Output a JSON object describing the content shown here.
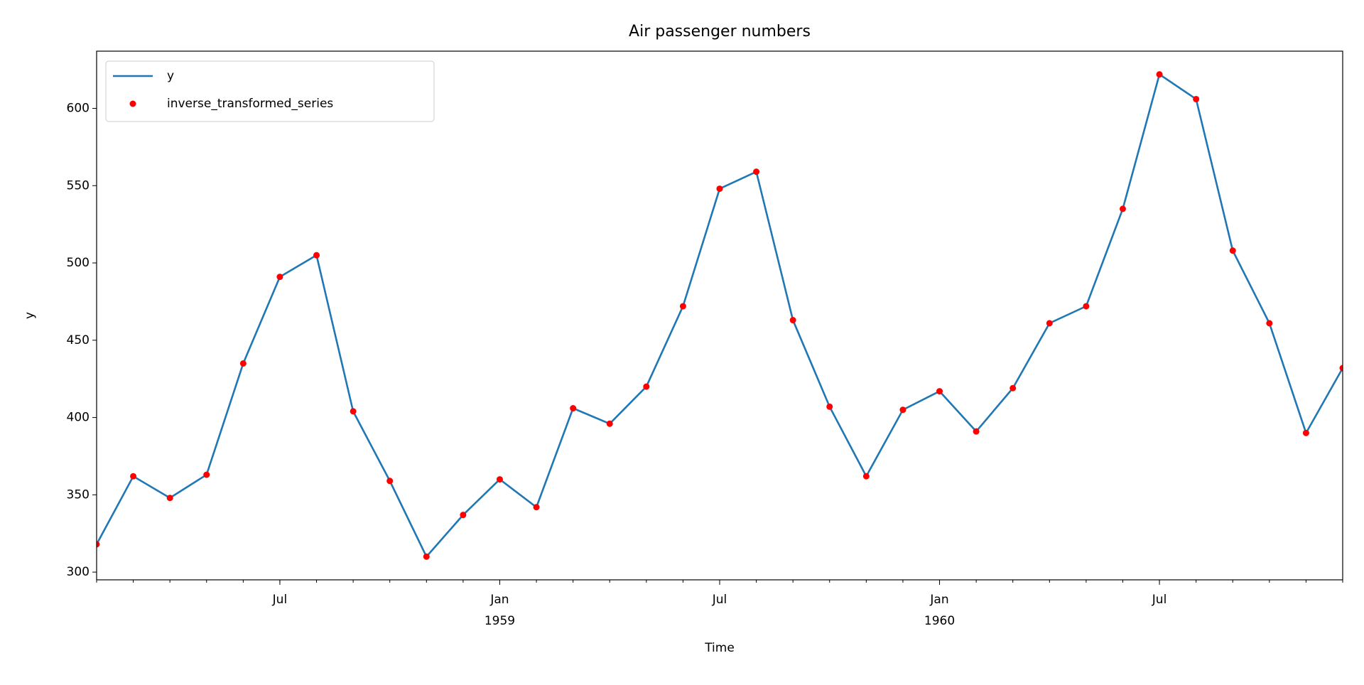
{
  "chart_data": {
    "type": "line",
    "title": "Air passenger numbers",
    "x_label": "Time",
    "y_label": "y",
    "x": [
      "1958-02",
      "1958-03",
      "1958-04",
      "1958-05",
      "1958-06",
      "1958-07",
      "1958-08",
      "1958-09",
      "1958-10",
      "1958-11",
      "1958-12",
      "1959-01",
      "1959-02",
      "1959-03",
      "1959-04",
      "1959-05",
      "1959-06",
      "1959-07",
      "1959-08",
      "1959-09",
      "1959-10",
      "1959-11",
      "1959-12",
      "1960-01",
      "1960-02",
      "1960-03",
      "1960-04",
      "1960-05",
      "1960-06",
      "1960-07",
      "1960-08",
      "1960-09",
      "1960-10",
      "1960-11",
      "1960-12"
    ],
    "series": [
      {
        "name": "y",
        "color": "#1f77b4",
        "style": "line",
        "values": [
          318,
          362,
          348,
          363,
          435,
          491,
          505,
          404,
          359,
          310,
          337,
          360,
          342,
          406,
          396,
          420,
          472,
          548,
          559,
          463,
          407,
          362,
          405,
          417,
          391,
          419,
          461,
          472,
          535,
          622,
          606,
          508,
          461,
          390,
          432
        ]
      },
      {
        "name": "inverse_transformed_series",
        "color": "#ff0000",
        "style": "markers",
        "values": [
          318,
          362,
          348,
          363,
          435,
          491,
          505,
          404,
          359,
          310,
          337,
          360,
          342,
          406,
          396,
          420,
          472,
          548,
          559,
          463,
          407,
          362,
          405,
          417,
          391,
          419,
          461,
          472,
          535,
          622,
          606,
          508,
          461,
          390,
          432
        ]
      }
    ],
    "xlim": [
      "1958-02",
      "1960-12"
    ],
    "ylim": [
      295,
      637
    ],
    "yticks": [
      300,
      350,
      400,
      450,
      500,
      550,
      600
    ],
    "xticks": [
      {
        "value": "1958-07",
        "label": "Jul"
      },
      {
        "value": "1959-01",
        "label": "Jan",
        "year_label": "1959"
      },
      {
        "value": "1959-07",
        "label": "Jul"
      },
      {
        "value": "1960-01",
        "label": "Jan",
        "year_label": "1960"
      },
      {
        "value": "1960-07",
        "label": "Jul"
      }
    ],
    "legend": "upper left",
    "grid": false
  }
}
